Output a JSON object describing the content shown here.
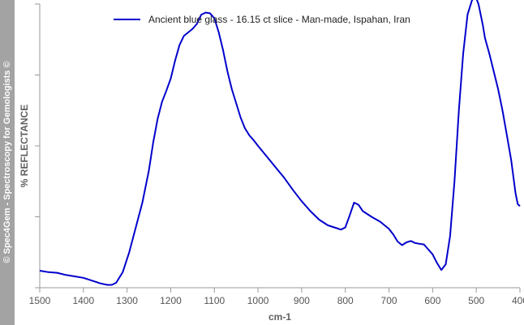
{
  "watermark": "© Spec4Gem - Spectroscopy for Gemologists ©",
  "chart_data": {
    "type": "line",
    "xlabel": "cm-1",
    "ylabel": "% REFLECTANCE",
    "xlim": [
      1500,
      400
    ],
    "x_reversed": true,
    "xticks": [
      1500,
      1400,
      1300,
      1200,
      1100,
      1000,
      900,
      800,
      700,
      600,
      500,
      400
    ],
    "ylim": [
      0,
      4
    ],
    "yticks_labeled": false,
    "grid": false,
    "legend_position": "top-center",
    "series": [
      {
        "name": "Ancient blue glass - 16.15 ct slice - Man-made, Ispahan, Iran",
        "color": "#0000cc",
        "x": [
          1500,
          1480,
          1460,
          1440,
          1420,
          1400,
          1380,
          1360,
          1345,
          1335,
          1325,
          1310,
          1295,
          1280,
          1265,
          1250,
          1240,
          1230,
          1220,
          1210,
          1200,
          1190,
          1180,
          1170,
          1160,
          1150,
          1140,
          1130,
          1120,
          1110,
          1100,
          1090,
          1080,
          1070,
          1060,
          1050,
          1040,
          1030,
          1020,
          1010,
          1000,
          980,
          960,
          940,
          920,
          900,
          880,
          860,
          840,
          820,
          810,
          800,
          790,
          780,
          770,
          760,
          740,
          720,
          700,
          690,
          680,
          670,
          660,
          650,
          640,
          630,
          620,
          600,
          590,
          580,
          570,
          560,
          550,
          540,
          530,
          520,
          510,
          505,
          500,
          495,
          490,
          485,
          480,
          470,
          460,
          450,
          440,
          430,
          420,
          410,
          405,
          400
        ],
        "y": [
          0.24,
          0.22,
          0.21,
          0.18,
          0.16,
          0.14,
          0.1,
          0.06,
          0.04,
          0.04,
          0.07,
          0.22,
          0.5,
          0.85,
          1.2,
          1.65,
          2.05,
          2.38,
          2.62,
          2.78,
          2.95,
          3.2,
          3.42,
          3.55,
          3.6,
          3.65,
          3.72,
          3.85,
          3.88,
          3.87,
          3.8,
          3.6,
          3.35,
          3.05,
          2.8,
          2.6,
          2.4,
          2.25,
          2.15,
          2.08,
          2.0,
          1.85,
          1.7,
          1.55,
          1.38,
          1.22,
          1.08,
          0.96,
          0.88,
          0.84,
          0.82,
          0.85,
          1.02,
          1.2,
          1.17,
          1.08,
          1.0,
          0.93,
          0.83,
          0.75,
          0.65,
          0.6,
          0.64,
          0.66,
          0.63,
          0.62,
          0.61,
          0.47,
          0.35,
          0.25,
          0.33,
          0.73,
          1.5,
          2.5,
          3.3,
          3.85,
          4.05,
          4.1,
          4.08,
          4.0,
          3.85,
          3.7,
          3.52,
          3.3,
          3.05,
          2.8,
          2.5,
          2.15,
          1.8,
          1.33,
          1.18,
          1.15
        ]
      }
    ]
  }
}
